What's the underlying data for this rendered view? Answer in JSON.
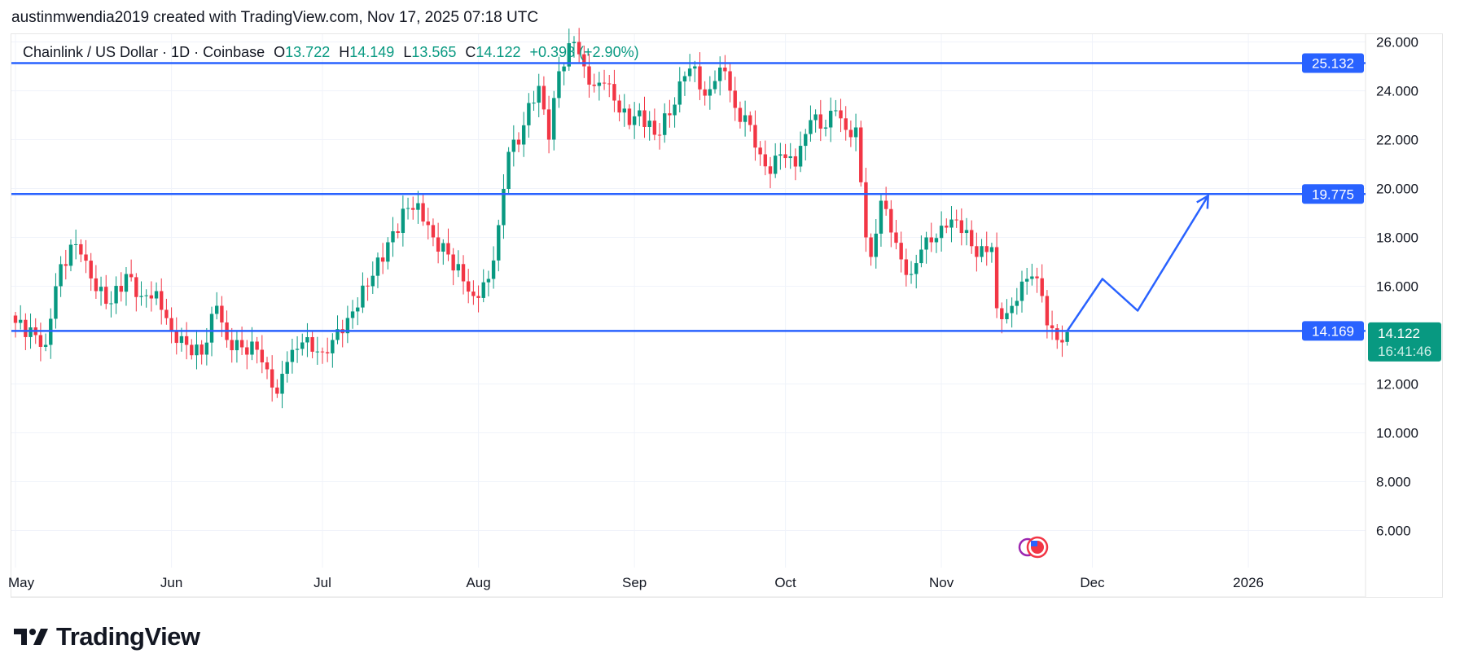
{
  "attribution": "austinmwendia2019 created with TradingView.com, Nov 17, 2025 07:18 UTC",
  "legend": {
    "symbol": "Chainlink / US Dollar · 1D · Coinbase",
    "o_label": "O",
    "o": "13.722",
    "h_label": "H",
    "h": "14.149",
    "l_label": "L",
    "l": "13.565",
    "c_label": "C",
    "c": "14.122",
    "change": "+0.398 (+2.90%)"
  },
  "logo": "TradingView",
  "colors": {
    "up": "#089981",
    "down": "#f23645",
    "line": "#2962ff",
    "grid": "#f0f3fa"
  },
  "chart_data": {
    "type": "candlestick",
    "title": "Chainlink / US Dollar · 1D · Coinbase",
    "xlabel": "",
    "ylabel": "",
    "x_start": "2025-05-01",
    "x_ticks": [
      {
        "label": "May",
        "day": 0
      },
      {
        "label": "Jun",
        "day": 31
      },
      {
        "label": "Jul",
        "day": 61
      },
      {
        "label": "Aug",
        "day": 92
      },
      {
        "label": "Sep",
        "day": 123
      },
      {
        "label": "Oct",
        "day": 153
      },
      {
        "label": "Nov",
        "day": 184
      },
      {
        "label": "Dec",
        "day": 214
      },
      {
        "label": "2026",
        "day": 245
      }
    ],
    "y_ticks": [
      "26.000",
      "24.000",
      "22.000",
      "20.000",
      "18.000",
      "16.000",
      "12.000",
      "10.000",
      "8.000",
      "6.000"
    ],
    "ylim": [
      6,
      26
    ],
    "close_waypoints": [
      [
        0,
        14.5
      ],
      [
        4,
        14.0
      ],
      [
        6,
        13.6
      ],
      [
        8,
        16.0
      ],
      [
        11,
        17.7
      ],
      [
        13,
        17.3
      ],
      [
        16,
        15.8
      ],
      [
        19,
        15.3
      ],
      [
        22,
        16.5
      ],
      [
        25,
        15.6
      ],
      [
        28,
        15.8
      ],
      [
        31,
        14.2
      ],
      [
        34,
        13.6
      ],
      [
        37,
        13.2
      ],
      [
        40,
        15.2
      ],
      [
        42,
        13.8
      ],
      [
        45,
        13.5
      ],
      [
        48,
        13.4
      ],
      [
        50,
        12.6
      ],
      [
        52,
        11.6
      ],
      [
        54,
        12.9
      ],
      [
        57,
        13.7
      ],
      [
        61,
        13.3
      ],
      [
        63,
        13.8
      ],
      [
        66,
        14.7
      ],
      [
        70,
        16.0
      ],
      [
        74,
        17.8
      ],
      [
        78,
        19.2
      ],
      [
        80,
        19.4
      ],
      [
        83,
        18.0
      ],
      [
        86,
        17.3
      ],
      [
        89,
        16.2
      ],
      [
        91,
        15.6
      ],
      [
        94,
        16.3
      ],
      [
        96,
        18.5
      ],
      [
        98,
        21.5
      ],
      [
        100,
        21.8
      ],
      [
        102,
        23.5
      ],
      [
        104,
        24.2
      ],
      [
        106,
        22.0
      ],
      [
        108,
        24.8
      ],
      [
        111,
        26.0
      ],
      [
        113,
        25.0
      ],
      [
        115,
        24.2
      ],
      [
        117,
        24.3
      ],
      [
        119,
        23.6
      ],
      [
        122,
        22.6
      ],
      [
        124,
        23.2
      ],
      [
        127,
        22.2
      ],
      [
        130,
        23.0
      ],
      [
        133,
        24.6
      ],
      [
        135,
        25.0
      ],
      [
        137,
        23.8
      ],
      [
        139,
        24.4
      ],
      [
        141,
        24.8
      ],
      [
        143,
        23.3
      ],
      [
        146,
        22.6
      ],
      [
        148,
        21.4
      ],
      [
        150,
        20.6
      ],
      [
        152,
        21.4
      ],
      [
        155,
        20.9
      ],
      [
        158,
        22.8
      ],
      [
        161,
        22.5
      ],
      [
        163,
        23.2
      ],
      [
        165,
        22.4
      ],
      [
        167,
        22.5
      ],
      [
        169,
        18.0
      ],
      [
        170,
        17.2
      ],
      [
        172,
        19.5
      ],
      [
        174,
        18.2
      ],
      [
        176,
        17.1
      ],
      [
        178,
        16.5
      ],
      [
        180,
        17.5
      ],
      [
        182,
        17.8
      ],
      [
        185,
        18.4
      ],
      [
        187,
        18.7
      ],
      [
        189,
        18.3
      ],
      [
        191,
        17.2
      ],
      [
        193,
        17.4
      ],
      [
        194,
        17.6
      ],
      [
        195,
        15.1
      ],
      [
        197,
        14.9
      ],
      [
        199,
        15.4
      ],
      [
        201,
        16.3
      ],
      [
        202,
        16.4
      ],
      [
        204,
        15.6
      ],
      [
        205,
        14.4
      ],
      [
        207,
        13.8
      ],
      [
        208,
        13.7
      ],
      [
        209,
        14.12
      ]
    ],
    "last_candle": {
      "open": 13.722,
      "high": 14.149,
      "low": 13.565,
      "close": 14.122
    },
    "horizontal_lines": [
      {
        "price": 25.132,
        "label": "25.132"
      },
      {
        "price": 19.775,
        "label": "19.775"
      },
      {
        "price": 14.169,
        "label": "14.169"
      }
    ],
    "last_price": {
      "label": "14.122",
      "countdown": "16:41:46"
    },
    "projection_path": [
      [
        209,
        14.17
      ],
      [
        216,
        16.3
      ],
      [
        223,
        15.0
      ],
      [
        237,
        19.7
      ]
    ]
  }
}
